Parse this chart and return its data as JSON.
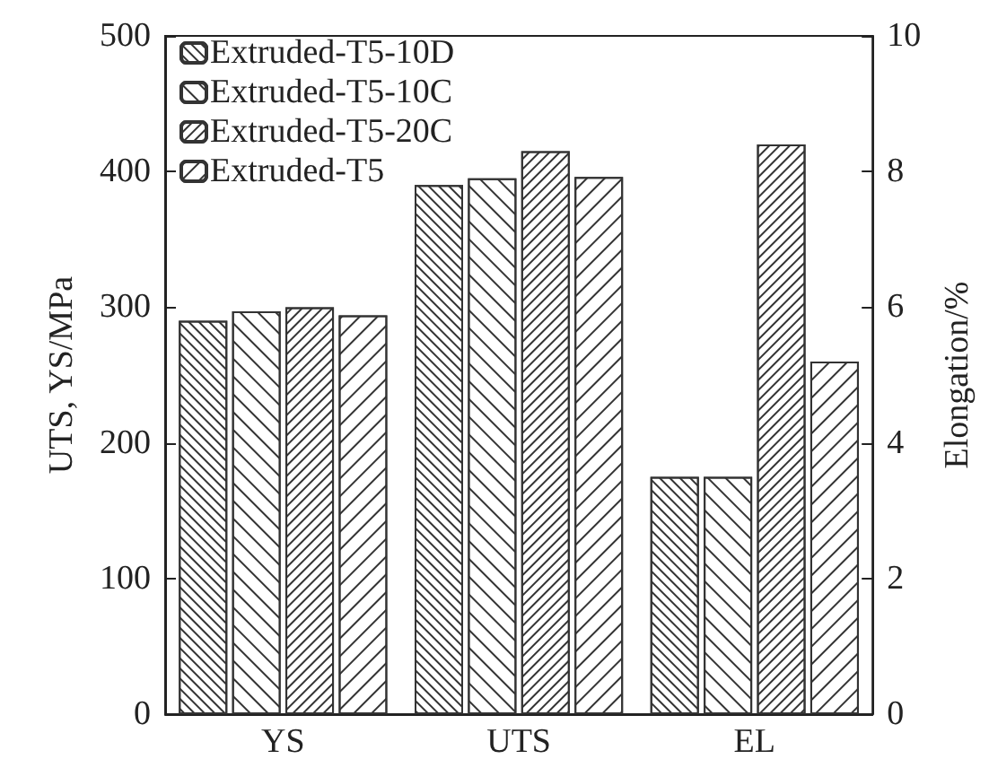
{
  "chart_data": {
    "type": "bar",
    "categories": [
      "YS",
      "UTS",
      "EL"
    ],
    "ylabel": "UTS, YS/MPa",
    "y2label": "Elongation/%",
    "ylim": [
      0,
      500
    ],
    "yticks": [
      0,
      100,
      200,
      300,
      400,
      500
    ],
    "y2lim": [
      0,
      10
    ],
    "y2ticks": [
      0,
      2,
      4,
      6,
      8,
      10
    ],
    "series": [
      {
        "name": "Extruded-T5-10D",
        "color": "#ffffff",
        "values": [
          290,
          390,
          null
        ]
      },
      {
        "name": "Extruded-T5-10C",
        "color": "#ffffff",
        "values": [
          297,
          395,
          null
        ]
      },
      {
        "name": "Extruded-T5-20C",
        "color": "#ffffff",
        "values": [
          300,
          415,
          null
        ]
      },
      {
        "name": "Extruded-T5",
        "color": "#ffffff",
        "values": [
          294,
          396,
          null
        ]
      },
      {
        "axis": "y2",
        "color": "#ffffff",
        "values": [
          null,
          null,
          3.5
        ]
      },
      {
        "axis": "y2",
        "color": "#ffffff",
        "values": [
          null,
          null,
          3.5
        ]
      },
      {
        "axis": "y2",
        "color": "#ffffff",
        "values": [
          null,
          null,
          8.4
        ]
      },
      {
        "axis": "y2",
        "color": "#ffffff",
        "values": [
          null,
          null,
          5.2
        ]
      }
    ],
    "legend": "top left",
    "grid": false
  }
}
